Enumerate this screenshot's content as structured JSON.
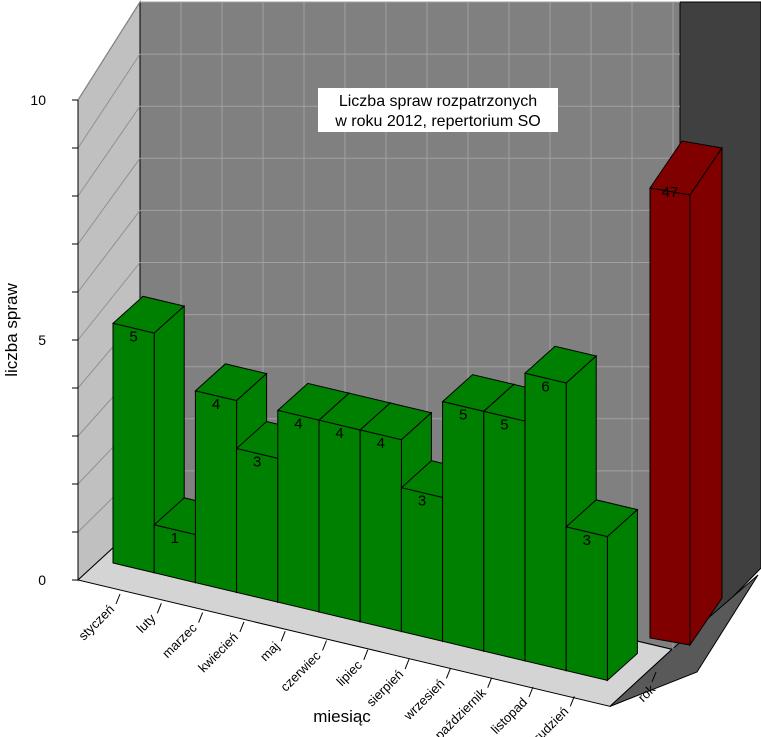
{
  "chart_data": {
    "type": "bar",
    "title_lines": [
      "Liczba spraw rozpatrzonych",
      "w roku 2012, repertorium SO"
    ],
    "ylabel": "liczba spraw",
    "xlabel": "miesiąc",
    "ylim": [
      0,
      10
    ],
    "yticks": [
      0,
      5,
      10
    ],
    "categories": [
      "styczeń",
      "luty",
      "marzec",
      "kwiecień",
      "maj",
      "czerwiec",
      "lipiec",
      "sierpień",
      "wrzesień",
      "październik",
      "listopad",
      "grudzień"
    ],
    "values": [
      5,
      1,
      4,
      3,
      4,
      4,
      4,
      3,
      5,
      5,
      6,
      3
    ],
    "total": {
      "label": "rok",
      "value": 47
    },
    "colors": {
      "bar": "#008000",
      "total_bar": "#800000",
      "back_wall": "#808080",
      "side_wall": "#c0c0c0",
      "floor": "#d4d4d4",
      "total_wall": "#404040"
    },
    "grid": true
  }
}
